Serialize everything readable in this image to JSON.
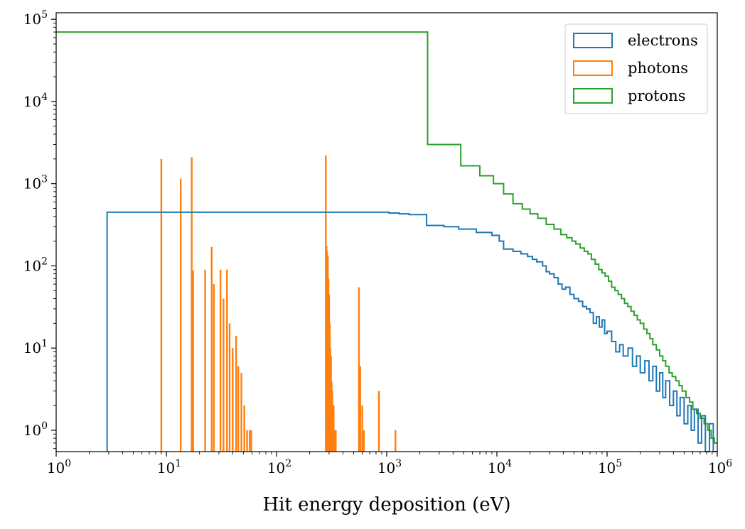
{
  "chart_data": {
    "type": "histogram",
    "title": "",
    "xlabel": "Hit energy deposition (eV)",
    "ylabel": "",
    "xscale": "log",
    "yscale": "log",
    "xlim": [
      1,
      1000000
    ],
    "ylim": [
      0.55,
      120000
    ],
    "grid": false,
    "legend_position": "top-right",
    "x_ticks": [
      {
        "base": "10",
        "exp": "0",
        "value": 1
      },
      {
        "base": "10",
        "exp": "1",
        "value": 10
      },
      {
        "base": "10",
        "exp": "2",
        "value": 100
      },
      {
        "base": "10",
        "exp": "3",
        "value": 1000
      },
      {
        "base": "10",
        "exp": "4",
        "value": 10000
      },
      {
        "base": "10",
        "exp": "5",
        "value": 100000
      },
      {
        "base": "10",
        "exp": "6",
        "value": 1000000
      }
    ],
    "y_ticks": [
      {
        "base": "10",
        "exp": "0",
        "value": 1
      },
      {
        "base": "10",
        "exp": "1",
        "value": 10
      },
      {
        "base": "10",
        "exp": "2",
        "value": 100
      },
      {
        "base": "10",
        "exp": "3",
        "value": 1000
      },
      {
        "base": "10",
        "exp": "4",
        "value": 10000
      },
      {
        "base": "10",
        "exp": "5",
        "value": 100000
      }
    ],
    "series": [
      {
        "name": "electrons",
        "color": "#1f77b4",
        "steps": [
          [
            2.9,
            450
          ],
          [
            1050,
            440
          ],
          [
            1300,
            430
          ],
          [
            1600,
            420
          ],
          [
            2300,
            380
          ],
          [
            2300,
            310
          ],
          [
            3300,
            300
          ],
          [
            4500,
            280
          ],
          [
            6500,
            255
          ],
          [
            9000,
            235
          ],
          [
            10500,
            200
          ],
          [
            11500,
            160
          ],
          [
            14000,
            150
          ],
          [
            16500,
            140
          ],
          [
            19000,
            130
          ],
          [
            21000,
            120
          ],
          [
            23000,
            112
          ],
          [
            26000,
            100
          ],
          [
            28000,
            85
          ],
          [
            30000,
            80
          ],
          [
            33000,
            72
          ],
          [
            36000,
            60
          ],
          [
            39000,
            52
          ],
          [
            42000,
            55
          ],
          [
            46000,
            45
          ],
          [
            50000,
            40
          ],
          [
            55000,
            37
          ],
          [
            60000,
            32
          ],
          [
            65000,
            30
          ],
          [
            70000,
            27
          ],
          [
            75000,
            20
          ],
          [
            80000,
            24
          ],
          [
            85000,
            18
          ],
          [
            90000,
            22
          ],
          [
            95000,
            15
          ],
          [
            100000,
            16
          ],
          [
            110000,
            12
          ],
          [
            120000,
            9
          ],
          [
            130000,
            11
          ],
          [
            140000,
            8
          ],
          [
            155000,
            10
          ],
          [
            170000,
            6
          ],
          [
            185000,
            8
          ],
          [
            200000,
            5
          ],
          [
            220000,
            7
          ],
          [
            240000,
            4
          ],
          [
            260000,
            6
          ],
          [
            280000,
            3
          ],
          [
            300000,
            5
          ],
          [
            320000,
            2.5
          ],
          [
            340000,
            4
          ],
          [
            370000,
            2
          ],
          [
            400000,
            3
          ],
          [
            430000,
            1.5
          ],
          [
            460000,
            2.5
          ],
          [
            500000,
            1.2
          ],
          [
            540000,
            2
          ],
          [
            580000,
            1
          ],
          [
            620000,
            1.8
          ],
          [
            670000,
            0.7
          ],
          [
            720000,
            1.5
          ],
          [
            780000,
            0.5
          ],
          [
            850000,
            1.2
          ],
          [
            920000,
            0.5
          ],
          [
            1000000,
            0.5
          ]
        ]
      },
      {
        "name": "photons",
        "color": "#ff7f0e",
        "spikes": [
          [
            9.0,
            2000
          ],
          [
            13.5,
            1150
          ],
          [
            17.0,
            2100
          ],
          [
            17.5,
            88
          ],
          [
            22.5,
            90
          ],
          [
            25.8,
            170
          ],
          [
            27.0,
            60
          ],
          [
            31.0,
            90
          ],
          [
            33.0,
            40
          ],
          [
            35.5,
            90
          ],
          [
            37.5,
            20
          ],
          [
            40.0,
            10
          ],
          [
            43.0,
            14
          ],
          [
            45.0,
            6
          ],
          [
            48.0,
            5
          ],
          [
            51.0,
            2
          ],
          [
            54.0,
            1
          ],
          [
            57.0,
            1
          ],
          [
            59.0,
            1
          ],
          [
            280,
            2200
          ],
          [
            284,
            175
          ],
          [
            288,
            150
          ],
          [
            292,
            130
          ],
          [
            296,
            70
          ],
          [
            300,
            45
          ],
          [
            304,
            20
          ],
          [
            308,
            10
          ],
          [
            312,
            8
          ],
          [
            316,
            4
          ],
          [
            320,
            3
          ],
          [
            325,
            2
          ],
          [
            330,
            2
          ],
          [
            340,
            1
          ],
          [
            345,
            1
          ],
          [
            560,
            55
          ],
          [
            575,
            6
          ],
          [
            600,
            2
          ],
          [
            620,
            1
          ],
          [
            850,
            3
          ],
          [
            1200,
            1
          ]
        ]
      },
      {
        "name": "protons",
        "color": "#2ca02c",
        "steps": [
          [
            1,
            70000
          ],
          [
            2350,
            3000
          ],
          [
            4700,
            1650
          ],
          [
            7000,
            1250
          ],
          [
            9300,
            1000
          ],
          [
            11500,
            750
          ],
          [
            14000,
            570
          ],
          [
            17000,
            490
          ],
          [
            20000,
            430
          ],
          [
            23500,
            380
          ],
          [
            28000,
            320
          ],
          [
            33000,
            280
          ],
          [
            38000,
            240
          ],
          [
            43000,
            220
          ],
          [
            48000,
            200
          ],
          [
            52000,
            185
          ],
          [
            57000,
            165
          ],
          [
            62000,
            150
          ],
          [
            67000,
            140
          ],
          [
            72000,
            120
          ],
          [
            78000,
            105
          ],
          [
            84000,
            90
          ],
          [
            90000,
            82
          ],
          [
            96000,
            75
          ],
          [
            103000,
            65
          ],
          [
            110000,
            55
          ],
          [
            118000,
            50
          ],
          [
            126000,
            45
          ],
          [
            135000,
            40
          ],
          [
            144000,
            35
          ],
          [
            154000,
            32
          ],
          [
            165000,
            28
          ],
          [
            176000,
            25
          ],
          [
            188000,
            22
          ],
          [
            200000,
            20
          ],
          [
            215000,
            17
          ],
          [
            230000,
            15
          ],
          [
            245000,
            13
          ],
          [
            260000,
            11
          ],
          [
            280000,
            9.5
          ],
          [
            300000,
            8
          ],
          [
            320000,
            7
          ],
          [
            340000,
            6
          ],
          [
            365000,
            5
          ],
          [
            390000,
            4.5
          ],
          [
            420000,
            4
          ],
          [
            450000,
            3.5
          ],
          [
            480000,
            3
          ],
          [
            520000,
            2.5
          ],
          [
            560000,
            2.2
          ],
          [
            600000,
            1.8
          ],
          [
            650000,
            1.6
          ],
          [
            700000,
            1.4
          ],
          [
            760000,
            1.2
          ],
          [
            820000,
            1
          ],
          [
            880000,
            0.8
          ],
          [
            940000,
            0.7
          ],
          [
            1000000,
            0.7
          ]
        ]
      }
    ]
  }
}
